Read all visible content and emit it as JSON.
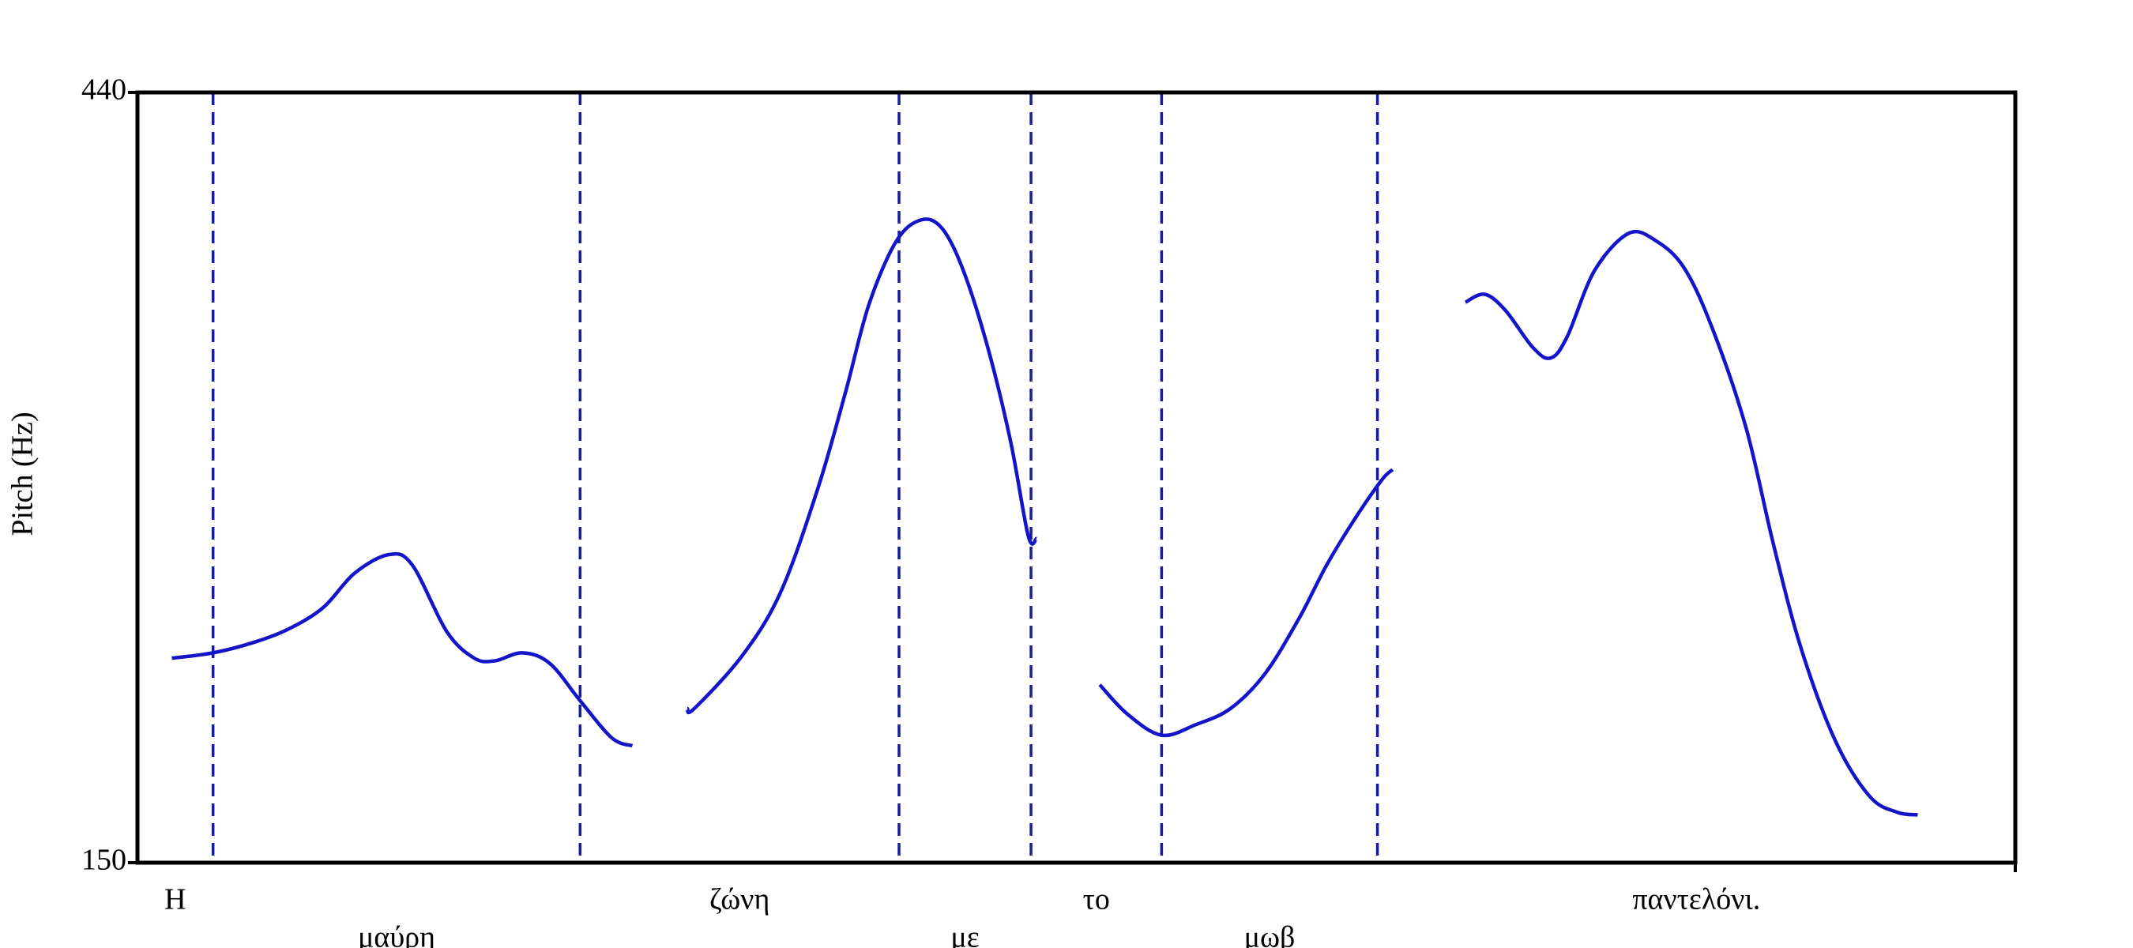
{
  "chart_data": {
    "type": "line",
    "y_label": "Pitch (Hz)",
    "ylim": [
      150,
      440
    ],
    "yticks": [
      150,
      440
    ],
    "xlim": [
      0,
      2.732
    ],
    "color": "#1414c8",
    "boundary_color": "#1a1a9a",
    "x": [
      0.05,
      0.11,
      0.17,
      0.22,
      0.27,
      0.316,
      0.366,
      0.4,
      0.45,
      0.49,
      0.52,
      0.56,
      0.6,
      0.644,
      0.69,
      0.72,
      null,
      0.8,
      0.81,
      0.88,
      0.936,
      0.99,
      1.03,
      1.064,
      1.104,
      1.14,
      1.17,
      1.2,
      1.236,
      1.27,
      1.296,
      1.308,
      null,
      1.4,
      1.44,
      1.49,
      1.54,
      1.59,
      1.64,
      1.69,
      1.73,
      1.77,
      1.81,
      1.826,
      null,
      1.932,
      1.96,
      1.99,
      2.03,
      2.056,
      2.08,
      2.12,
      2.17,
      2.21,
      2.25,
      2.29,
      2.34,
      2.38,
      2.42,
      2.47,
      2.52,
      2.56,
      2.59
    ],
    "values": [
      227,
      229,
      233,
      238,
      246,
      259,
      266,
      262,
      237,
      227,
      226,
      229,
      225,
      211,
      197,
      194,
      null,
      208,
      208,
      228,
      252,
      291,
      327,
      360,
      384,
      392,
      389,
      374,
      345,
      309,
      273,
      272,
      null,
      217,
      206,
      198,
      202,
      208,
      221,
      242,
      262,
      279,
      294,
      298,
      null,
      361,
      364,
      358,
      344,
      340,
      348,
      373,
      387,
      384,
      374,
      352,
      314,
      270,
      231,
      196,
      175,
      169,
      168
    ],
    "boundaries": [
      0.11,
      0.644,
      1.108,
      1.3,
      1.49,
      1.804
    ],
    "words": [
      "Η",
      "μαύρη",
      "ζώνη",
      "με",
      "το",
      "μωβ",
      "παντελόνι."
    ]
  }
}
